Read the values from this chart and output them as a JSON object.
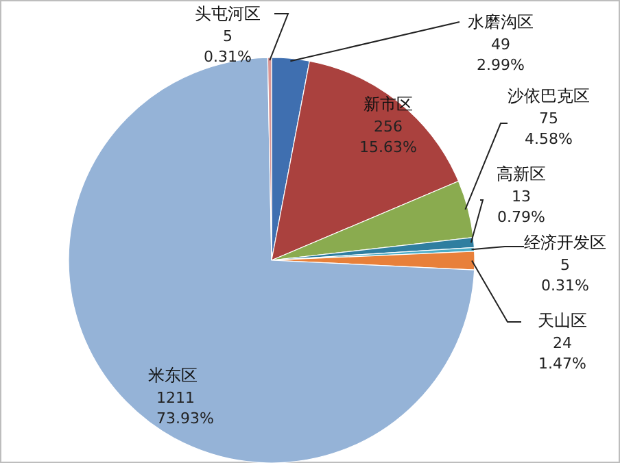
{
  "chart_data": {
    "type": "pie",
    "categories": [
      "水磨沟区",
      "新市区",
      "沙依巴克区",
      "高新区",
      "经济开发区",
      "天山区",
      "米东区",
      "头屯河区"
    ],
    "values": [
      49,
      256,
      75,
      13,
      5,
      24,
      1211,
      5
    ],
    "colors": [
      "#3f6fb0",
      "#aa413e",
      "#8aab4f",
      "#2f7ea0",
      "#4bacc6",
      "#e8803a",
      "#95b3d7",
      "#d99694"
    ],
    "value_labels": [
      "49\n2.99%",
      "256\n15.63%",
      "75\n4.58%",
      "13\n0.79%",
      "5\n0.31%",
      "24\n1.47%",
      "1211\n73.93%",
      "5\n0.31%"
    ]
  }
}
